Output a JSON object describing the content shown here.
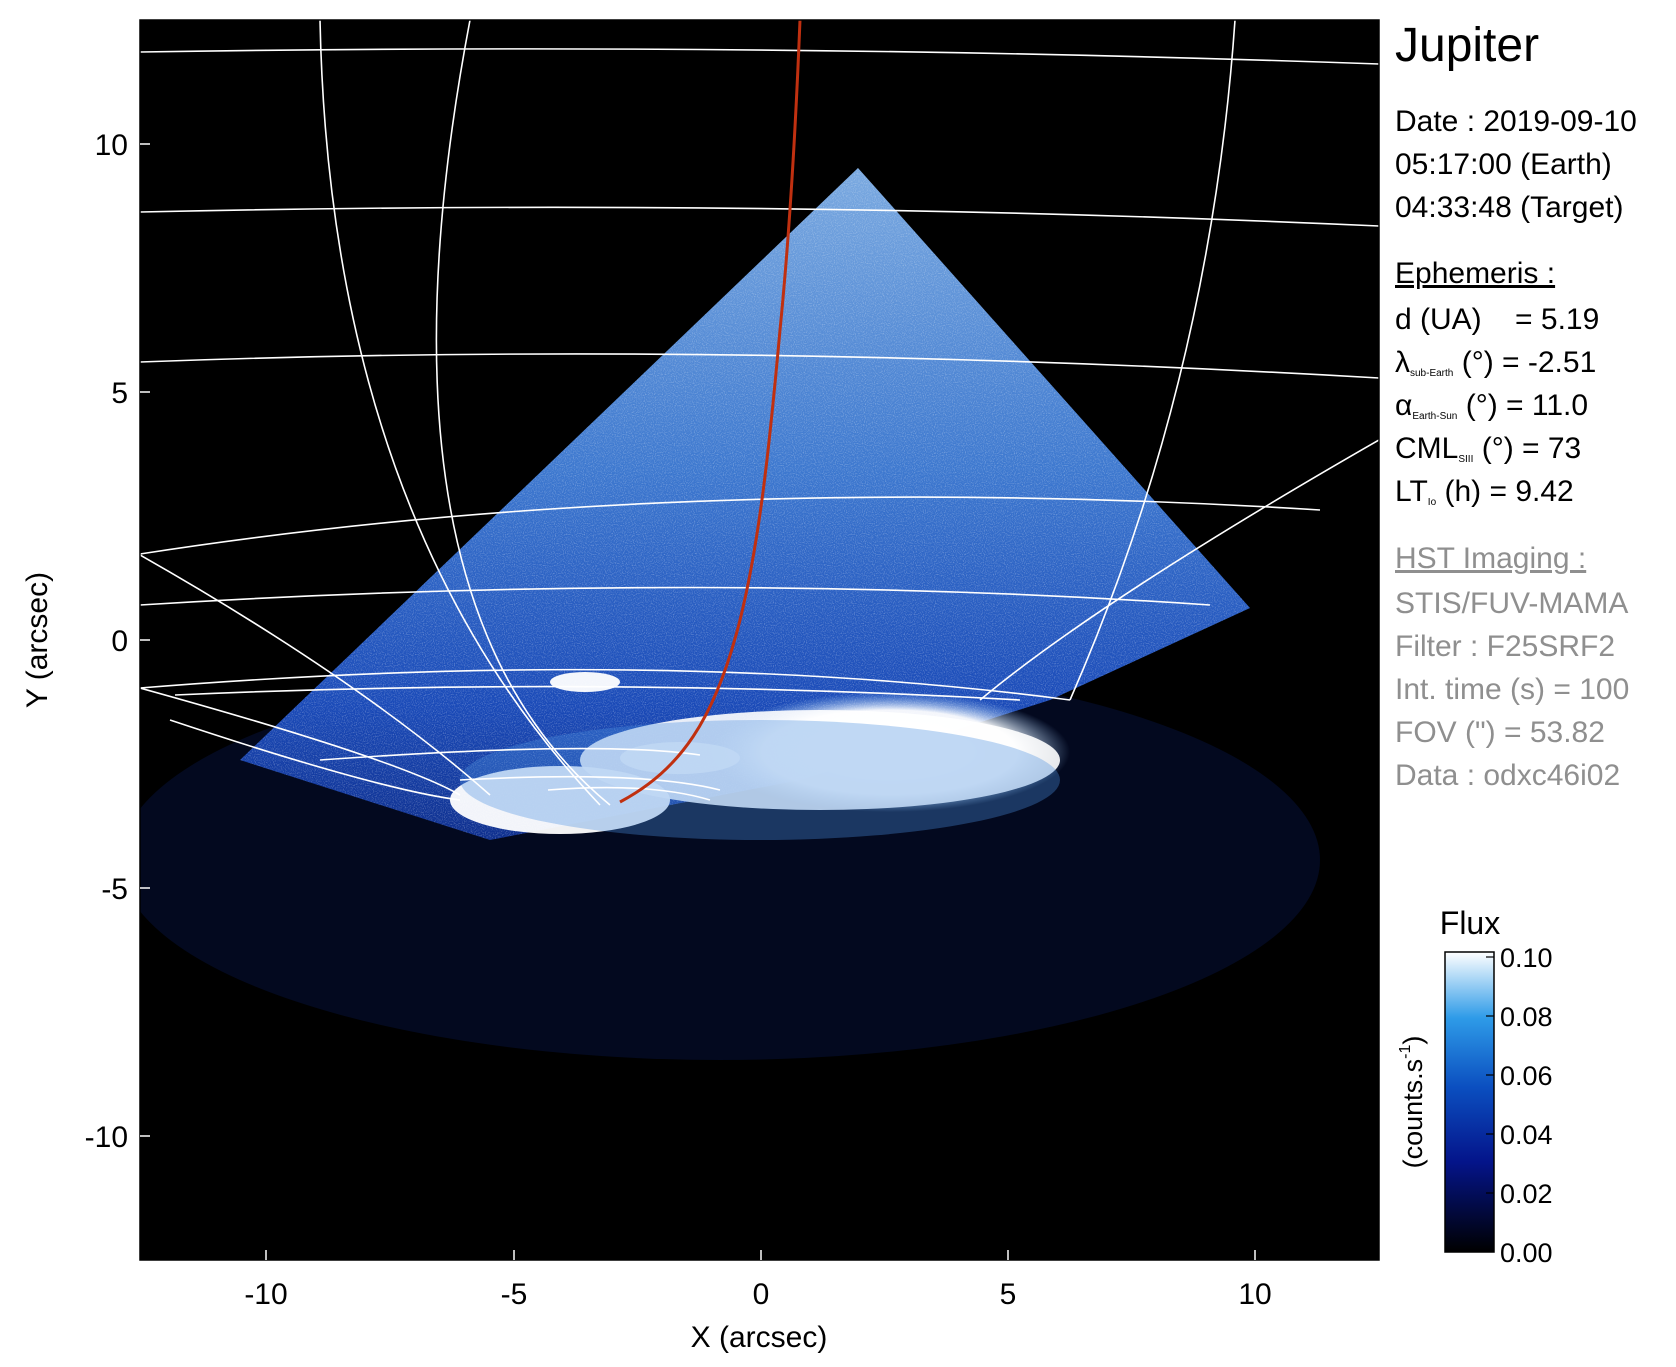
{
  "axes": {
    "x_label": "X (arcsec)",
    "y_label": "Y (arcsec)",
    "x_ticks": [
      "-10",
      "-5",
      "0",
      "5",
      "10"
    ],
    "y_ticks": [
      "10",
      "5",
      "0",
      "-5",
      "-10"
    ],
    "xlim": [
      -12.5,
      12.5
    ],
    "ylim": [
      -12.5,
      12.5
    ]
  },
  "info": {
    "target": "Jupiter",
    "date_line": "Date : 2019-09-10",
    "earth_time": "05:17:00 (Earth)",
    "target_time": "04:33:48 (Target)",
    "ephemeris_title": "Ephemeris :",
    "eph": [
      {
        "main": "d (UA)",
        "sub": "",
        "value": "= 5.19"
      },
      {
        "main": "λ",
        "sub": "sub-Earth",
        "value": "(°) = -2.51"
      },
      {
        "main": "α",
        "sub": "Earth-Sun",
        "value": "(°) = 11.0"
      },
      {
        "main": "CML",
        "sub": "SIII",
        "value": "(°) = 73"
      },
      {
        "main": "LT",
        "sub": "Io",
        "value": "(h) = 9.42"
      }
    ],
    "hst_title": "HST Imaging :",
    "hst": [
      "STIS/FUV-MAMA",
      "Filter : F25SRF2",
      "Int. time (s) = 100",
      "FOV (\") = 53.82",
      "Data : odxc46i02"
    ]
  },
  "colorbar": {
    "title": "Flux",
    "label": "(counts.s",
    "label_sup": "-1",
    "label_close": ")",
    "ticks": [
      "0.10",
      "0.08",
      "0.06",
      "0.04",
      "0.02",
      "0.00"
    ],
    "range": [
      0,
      0.1
    ]
  },
  "colors": {
    "background": "#000000",
    "emission": "#1e5fc8",
    "footprint_line": "#c03010",
    "grid": "#ffffff",
    "grey_text": "#8f8f8f"
  }
}
